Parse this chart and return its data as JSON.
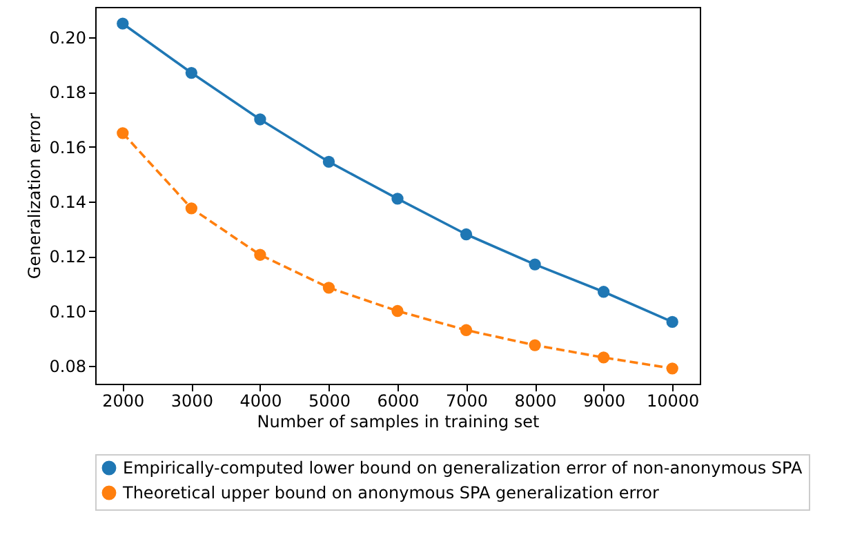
{
  "chart_data": {
    "type": "line",
    "xlabel": "Number of samples in training set",
    "ylabel": "Generalization error",
    "x": [
      2000,
      3000,
      4000,
      5000,
      6000,
      7000,
      8000,
      9000,
      10000
    ],
    "series": [
      {
        "name": "Empirically-computed lower bound on generalization error of non-anonymous SPA",
        "color": "#1f77b4",
        "line_style": "solid",
        "values": [
          0.205,
          0.187,
          0.17,
          0.1545,
          0.141,
          0.128,
          0.117,
          0.107,
          0.096
        ]
      },
      {
        "name": "Theoretical upper bound on anonymous SPA generalization error",
        "color": "#ff7f0e",
        "line_style": "dashed",
        "values": [
          0.165,
          0.1375,
          0.1205,
          0.1085,
          0.1,
          0.093,
          0.0875,
          0.083,
          0.079
        ]
      }
    ],
    "xlim": [
      1600,
      10400
    ],
    "ylim": [
      0.0734,
      0.2111
    ],
    "xticks": [
      2000,
      3000,
      4000,
      5000,
      6000,
      7000,
      8000,
      9000,
      10000
    ],
    "yticks": [
      {
        "value": 0.08,
        "label": "0.08"
      },
      {
        "value": 0.1,
        "label": "0.10"
      },
      {
        "value": 0.12,
        "label": "0.12"
      },
      {
        "value": 0.14,
        "label": "0.14"
      },
      {
        "value": 0.16,
        "label": "0.16"
      },
      {
        "value": 0.18,
        "label": "0.18"
      },
      {
        "value": 0.2,
        "label": "0.20"
      }
    ],
    "marker": "circle",
    "grid": false,
    "legend": "bottom"
  }
}
